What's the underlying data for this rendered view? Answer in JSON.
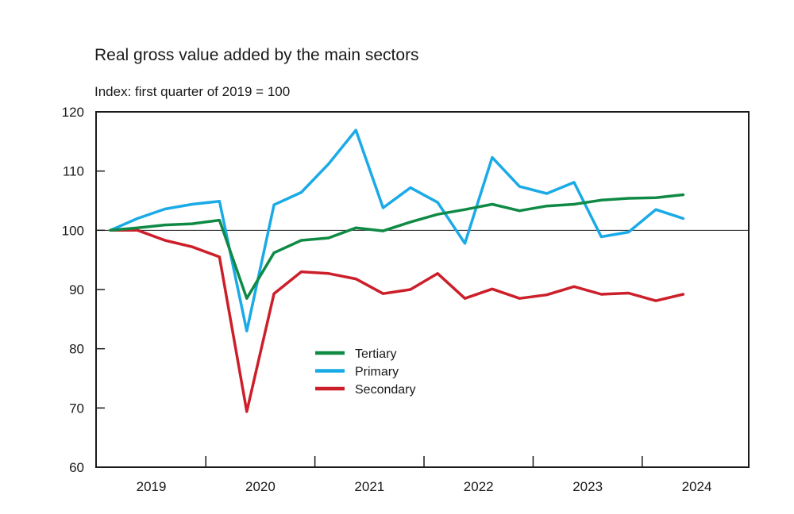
{
  "chart_data": {
    "type": "line",
    "title": "Real gross value added by the main sectors",
    "subtitle": "Index: first quarter of 2019 = 100",
    "xlabel": "",
    "ylabel": "",
    "ylim": [
      60,
      120
    ],
    "yticks": [
      60,
      70,
      80,
      90,
      100,
      110,
      120
    ],
    "reference_line": 100,
    "grid": false,
    "legend_position": "center",
    "x": [
      "2019Q1",
      "2019Q2",
      "2019Q3",
      "2019Q4",
      "2020Q1",
      "2020Q2",
      "2020Q3",
      "2020Q4",
      "2021Q1",
      "2021Q2",
      "2021Q3",
      "2021Q4",
      "2022Q1",
      "2022Q2",
      "2022Q3",
      "2022Q4",
      "2023Q1",
      "2023Q2",
      "2023Q3",
      "2023Q4",
      "2024Q1",
      "2024Q2"
    ],
    "x_year_labels": [
      "2019",
      "2020",
      "2021",
      "2022",
      "2023",
      "2024"
    ],
    "series": [
      {
        "name": "Tertiary",
        "color": "#0f8a45",
        "values": [
          100.0,
          100.4,
          100.9,
          101.1,
          101.7,
          88.5,
          96.2,
          98.3,
          98.7,
          100.4,
          99.9,
          101.4,
          102.7,
          103.5,
          104.4,
          103.3,
          104.1,
          104.4,
          105.1,
          105.4,
          105.5,
          106.0
        ]
      },
      {
        "name": "Primary",
        "color": "#1aaae6",
        "values": [
          100.0,
          102.0,
          103.6,
          104.4,
          104.9,
          83.0,
          104.3,
          106.4,
          111.2,
          116.9,
          103.8,
          107.2,
          104.7,
          97.8,
          112.3,
          107.4,
          106.2,
          108.1,
          98.9,
          99.7,
          103.5,
          102.0
        ]
      },
      {
        "name": "Secondary",
        "color": "#cc1f2a",
        "values": [
          100.0,
          100.0,
          98.3,
          97.2,
          95.5,
          69.4,
          89.3,
          93.0,
          92.7,
          91.8,
          89.3,
          90.0,
          92.7,
          88.5,
          90.1,
          88.5,
          89.1,
          90.5,
          89.2,
          89.4,
          88.1,
          89.2
        ]
      }
    ]
  }
}
